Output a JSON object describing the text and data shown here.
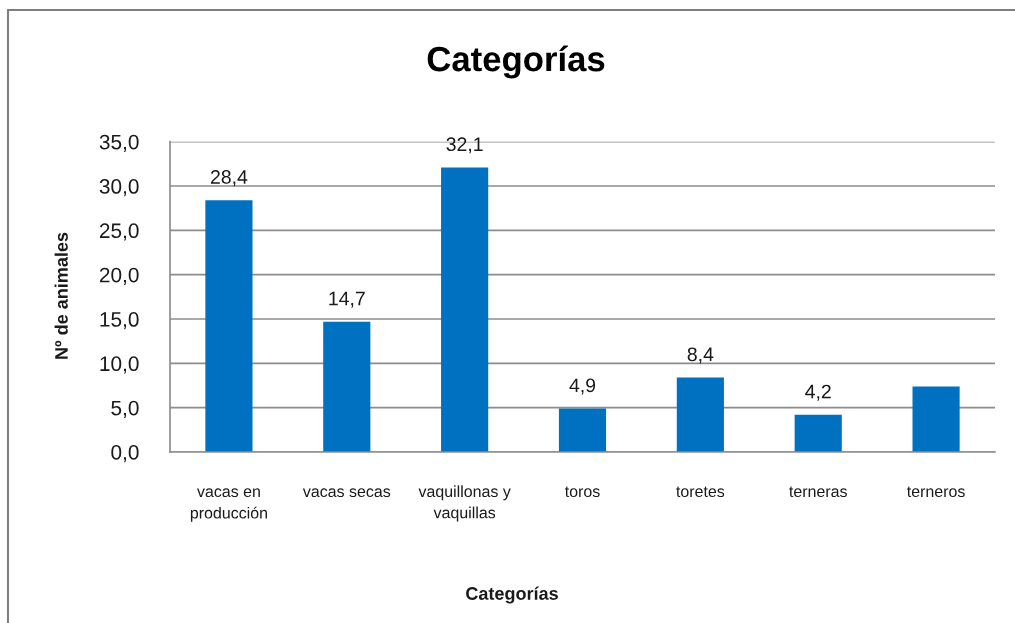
{
  "chart_data": {
    "type": "bar",
    "title": "Categorías",
    "xlabel": "Categorías",
    "ylabel": "Nº de animales",
    "categories": [
      "vacas en\nproducción",
      "vacas secas",
      "vaquillonas y\nvaquillas",
      "toros",
      "toretes",
      "terneras",
      "terneros"
    ],
    "values": [
      28.4,
      14.7,
      32.1,
      4.9,
      8.4,
      4.2,
      7.4
    ],
    "value_labels": [
      "28,4",
      "14,7",
      "32,1",
      "4,9",
      "8,4",
      "4,2",
      null
    ],
    "color": "#0070c0",
    "ylim": [
      0,
      35
    ],
    "yticks": [
      {
        "value": 0,
        "label": "0,0"
      },
      {
        "value": 5,
        "label": "5,0"
      },
      {
        "value": 10,
        "label": "10,0"
      },
      {
        "value": 15,
        "label": "15,0"
      },
      {
        "value": 20,
        "label": "20,0"
      },
      {
        "value": 25,
        "label": "25,0"
      },
      {
        "value": 30,
        "label": "30,0"
      },
      {
        "value": 35,
        "label": "35,0"
      }
    ],
    "grid": "y"
  }
}
